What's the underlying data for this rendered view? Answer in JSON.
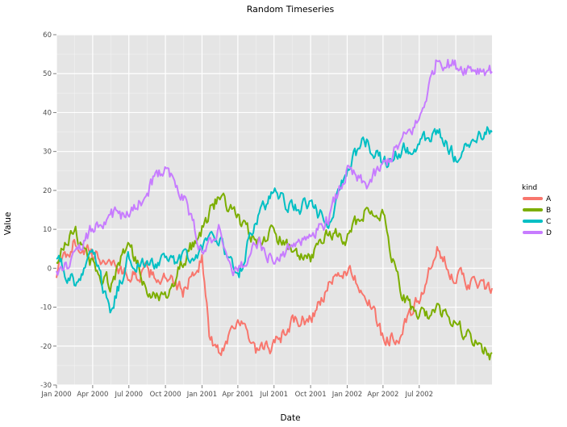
{
  "chart_data": {
    "type": "line",
    "title": "Random Timeseries",
    "xlabel": "Date",
    "ylabel": "Value",
    "x_start": "2000-01-01",
    "x_end": "2002-12-31",
    "ylim": [
      -30,
      60
    ],
    "grid": true,
    "x_ticks": [
      "Jan 2000",
      "Apr 2000",
      "Jul 2000",
      "Oct 2000",
      "Jan 2001",
      "Apr 2001",
      "Jul 2001",
      "Oct 2001",
      "Jan 2002",
      "Apr 2002",
      "Jul 2002"
    ],
    "y_ticks": [
      "-30",
      "-20",
      "-10",
      "0",
      "10",
      "20",
      "30",
      "40",
      "50",
      "60"
    ],
    "legend": {
      "title": "kind",
      "position": "right"
    },
    "series": [
      {
        "name": "A",
        "color": "#F8766D",
        "x": [
          "2000-01-01",
          "2000-02-15",
          "2000-04-01",
          "2000-05-15",
          "2000-07-01",
          "2000-08-15",
          "2000-10-01",
          "2000-11-15",
          "2001-01-01",
          "2001-01-20",
          "2001-02-15",
          "2001-04-01",
          "2001-05-15",
          "2001-07-01",
          "2001-08-15",
          "2001-10-01",
          "2001-11-15",
          "2002-01-01",
          "2002-02-15",
          "2002-04-01",
          "2002-05-15",
          "2002-07-01",
          "2002-08-15",
          "2002-10-01",
          "2002-12-31"
        ],
        "values": [
          -1,
          7,
          3,
          2,
          -2,
          -1,
          -3,
          -6,
          3,
          -18,
          -22,
          -12,
          -22,
          -20,
          -14,
          -13,
          -5,
          0,
          -6,
          -18,
          -17,
          -8,
          4,
          -2,
          -6
        ]
      },
      {
        "name": "B",
        "color": "#7CAE00",
        "x": [
          "2000-01-01",
          "2000-02-15",
          "2000-04-01",
          "2000-05-15",
          "2000-07-01",
          "2000-08-15",
          "2000-10-01",
          "2000-11-15",
          "2001-01-01",
          "2001-02-15",
          "2001-04-01",
          "2001-05-15",
          "2001-07-01",
          "2001-08-15",
          "2001-10-01",
          "2001-11-15",
          "2002-01-01",
          "2002-02-15",
          "2002-04-01",
          "2002-05-15",
          "2002-07-01",
          "2002-08-15",
          "2002-10-01",
          "2002-12-31"
        ],
        "values": [
          2,
          10,
          1,
          -4,
          6,
          -5,
          -7,
          2,
          10,
          19,
          13,
          7,
          9,
          4,
          2,
          9,
          8,
          15,
          14,
          -6,
          -13,
          -10,
          -15,
          -23
        ]
      },
      {
        "name": "C",
        "color": "#00BFC4",
        "x": [
          "2000-01-01",
          "2000-02-15",
          "2000-04-01",
          "2000-05-15",
          "2000-07-01",
          "2000-08-15",
          "2000-10-01",
          "2000-11-15",
          "2001-01-01",
          "2001-02-15",
          "2001-04-01",
          "2001-05-15",
          "2001-07-01",
          "2001-08-15",
          "2001-10-01",
          "2001-11-15",
          "2002-01-01",
          "2002-02-15",
          "2002-04-01",
          "2002-05-15",
          "2002-07-01",
          "2002-08-15",
          "2002-10-01",
          "2002-12-31"
        ],
        "values": [
          2,
          -4,
          4,
          -11,
          3,
          0,
          2,
          2,
          5,
          8,
          -3,
          12,
          19,
          15,
          16,
          12,
          26,
          33,
          27,
          30,
          31,
          36,
          28,
          36
        ]
      },
      {
        "name": "D",
        "color": "#C77CFF",
        "x": [
          "2000-01-01",
          "2000-02-15",
          "2000-04-01",
          "2000-05-15",
          "2000-07-01",
          "2000-08-15",
          "2000-10-01",
          "2000-11-15",
          "2001-01-01",
          "2001-02-15",
          "2001-04-01",
          "2001-05-15",
          "2001-07-01",
          "2001-08-15",
          "2001-10-01",
          "2001-11-15",
          "2002-01-01",
          "2002-02-15",
          "2002-04-01",
          "2002-05-15",
          "2002-07-01",
          "2002-08-15",
          "2002-10-01",
          "2002-12-31"
        ],
        "values": [
          -2,
          2,
          11,
          14,
          13,
          20,
          27,
          18,
          4,
          10,
          -2,
          8,
          1,
          6,
          8,
          13,
          25,
          21,
          26,
          32,
          38,
          54,
          52,
          51
        ]
      }
    ]
  }
}
